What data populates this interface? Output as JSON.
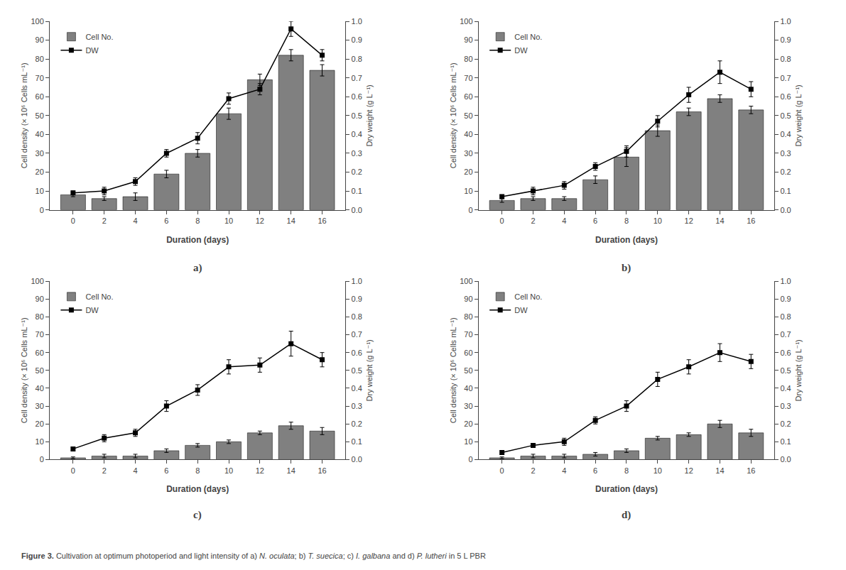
{
  "chart_data": [
    {
      "type": "bar",
      "annotation": "a)",
      "x": [
        0,
        2,
        4,
        6,
        8,
        10,
        12,
        14,
        16
      ],
      "xlabel": "Duration (days)",
      "ylabel": "Cell density (× 10⁶ Cells mL⁻¹)",
      "y2label": "Dry weight (g L⁻¹)",
      "xlim": [
        -1.5,
        17.5
      ],
      "xticks": [
        0,
        2,
        4,
        6,
        8,
        10,
        12,
        14,
        16
      ],
      "ylim": [
        0,
        100
      ],
      "yticks": [
        0,
        10,
        20,
        30,
        40,
        50,
        60,
        70,
        80,
        90,
        100
      ],
      "y2lim": [
        0,
        1
      ],
      "y2ticks": [
        {
          "value": 0,
          "label": "0.0"
        },
        0.1,
        0.2,
        0.3,
        0.4,
        0.5,
        0.6,
        0.7,
        0.8,
        0.9,
        {
          "value": 1.0,
          "label": "1.0"
        }
      ],
      "grid": false,
      "legend": "upper left",
      "series": [
        {
          "name": "Cell No.",
          "type": "bar",
          "color": "#808080",
          "values": [
            8,
            6,
            7,
            19,
            30,
            51,
            69,
            82,
            74
          ],
          "errors": [
            1,
            1,
            2,
            2,
            2,
            3,
            3,
            3,
            3
          ]
        },
        {
          "name": "DW",
          "type": "line",
          "axis": "y2",
          "color": "#000000",
          "marker": "square",
          "line_style": "solid",
          "values": [
            0.09,
            0.1,
            0.15,
            0.3,
            0.38,
            0.59,
            0.64,
            0.96,
            0.82
          ],
          "errors": [
            0.01,
            0.02,
            0.02,
            0.02,
            0.03,
            0.03,
            0.03,
            0.04,
            0.03
          ]
        }
      ]
    },
    {
      "type": "bar",
      "annotation": "b)",
      "x": [
        0,
        2,
        4,
        6,
        8,
        10,
        12,
        14,
        16
      ],
      "xlabel": "Duration (days)",
      "ylabel": "Cell density (× 10⁶ Cells mL⁻¹)",
      "y2label": "Dry weight (g L⁻¹)",
      "xlim": [
        -1.5,
        17.5
      ],
      "xticks": [
        0,
        2,
        4,
        6,
        8,
        10,
        12,
        14,
        16
      ],
      "ylim": [
        0,
        100
      ],
      "yticks": [
        0,
        10,
        20,
        30,
        40,
        50,
        60,
        70,
        80,
        90,
        100
      ],
      "y2lim": [
        0,
        1
      ],
      "y2ticks": [
        {
          "value": 0,
          "label": "0.0"
        },
        0.1,
        0.2,
        0.3,
        0.4,
        0.5,
        0.6,
        0.7,
        0.8,
        0.9,
        {
          "value": 1.0,
          "label": "1.0"
        }
      ],
      "grid": false,
      "legend": "upper left",
      "series": [
        {
          "name": "Cell No.",
          "type": "bar",
          "color": "#808080",
          "values": [
            5,
            6,
            6,
            16,
            28,
            42,
            52,
            59,
            53
          ],
          "errors": [
            1,
            1,
            1,
            2,
            5,
            3,
            2,
            2,
            2
          ]
        },
        {
          "name": "DW",
          "type": "line",
          "axis": "y2",
          "color": "#000000",
          "marker": "square",
          "line_style": "solid",
          "values": [
            0.07,
            0.1,
            0.13,
            0.23,
            0.31,
            0.47,
            0.61,
            0.73,
            0.64
          ],
          "errors": [
            0.01,
            0.02,
            0.02,
            0.02,
            0.03,
            0.03,
            0.04,
            0.06,
            0.04
          ]
        }
      ]
    },
    {
      "type": "bar",
      "annotation": "c)",
      "x": [
        0,
        2,
        4,
        6,
        8,
        10,
        12,
        14,
        16
      ],
      "xlabel": "Duration (days)",
      "ylabel": "Cell density (× 10⁶ Cells mL⁻¹)",
      "y2label": "Dry weight (g L⁻¹)",
      "xlim": [
        -1.5,
        17.5
      ],
      "xticks": [
        0,
        2,
        4,
        6,
        8,
        10,
        12,
        14,
        16
      ],
      "ylim": [
        0,
        100
      ],
      "yticks": [
        0,
        10,
        20,
        30,
        40,
        50,
        60,
        70,
        80,
        90,
        100
      ],
      "y2lim": [
        0,
        1
      ],
      "y2ticks": [
        {
          "value": 0,
          "label": "0.0"
        },
        0.1,
        0.2,
        0.3,
        0.4,
        0.5,
        0.6,
        0.7,
        0.8,
        0.9,
        {
          "value": 1.0,
          "label": "1.0"
        }
      ],
      "grid": false,
      "legend": "upper left",
      "series": [
        {
          "name": "Cell No.",
          "type": "bar",
          "color": "#808080",
          "values": [
            1,
            2,
            2,
            5,
            8,
            10,
            15,
            19,
            16
          ],
          "errors": [
            0.5,
            1,
            1,
            1,
            1,
            1,
            1,
            2,
            2
          ]
        },
        {
          "name": "DW",
          "type": "line",
          "axis": "y2",
          "color": "#000000",
          "marker": "square",
          "line_style": "solid",
          "values": [
            0.06,
            0.12,
            0.15,
            0.3,
            0.39,
            0.52,
            0.53,
            0.65,
            0.56
          ],
          "errors": [
            0.01,
            0.02,
            0.02,
            0.03,
            0.03,
            0.04,
            0.04,
            0.07,
            0.04
          ]
        }
      ]
    },
    {
      "type": "bar",
      "annotation": "d)",
      "x": [
        0,
        2,
        4,
        6,
        8,
        10,
        12,
        14,
        16
      ],
      "xlabel": "Duration (days)",
      "ylabel": "Cell density (× 10⁶ Cells mL⁻¹)",
      "y2label": "Dry weight (g L⁻¹)",
      "xlim": [
        -1.5,
        17.5
      ],
      "xticks": [
        0,
        2,
        4,
        6,
        8,
        10,
        12,
        14,
        16
      ],
      "ylim": [
        0,
        100
      ],
      "yticks": [
        0,
        10,
        20,
        30,
        40,
        50,
        60,
        70,
        80,
        90,
        100
      ],
      "y2lim": [
        0,
        1
      ],
      "y2ticks": [
        {
          "value": 0,
          "label": "0.0"
        },
        0.1,
        0.2,
        0.3,
        0.4,
        0.5,
        0.6,
        0.7,
        0.8,
        0.9,
        {
          "value": 1.0,
          "label": "1.0"
        }
      ],
      "grid": false,
      "legend": "upper left",
      "series": [
        {
          "name": "Cell No.",
          "type": "bar",
          "color": "#808080",
          "values": [
            1,
            2,
            2,
            3,
            5,
            12,
            14,
            20,
            15
          ],
          "errors": [
            0.5,
            1,
            1,
            1,
            1,
            1,
            1,
            2,
            2
          ]
        },
        {
          "name": "DW",
          "type": "line",
          "axis": "y2",
          "color": "#000000",
          "marker": "square",
          "line_style": "solid",
          "values": [
            0.04,
            0.08,
            0.1,
            0.22,
            0.3,
            0.45,
            0.52,
            0.6,
            0.55
          ],
          "errors": [
            0.01,
            0.01,
            0.02,
            0.02,
            0.03,
            0.04,
            0.04,
            0.05,
            0.04
          ]
        }
      ]
    }
  ],
  "caption": [
    {
      "text": "Figure 3.",
      "style": "bold"
    },
    {
      "text": " Cultivation at optimum photoperiod and light intensity of a) ",
      "style": "normal"
    },
    {
      "text": "N. oculata",
      "style": "italic"
    },
    {
      "text": "; b) ",
      "style": "normal"
    },
    {
      "text": "T. suecica",
      "style": "italic"
    },
    {
      "text": "; c) ",
      "style": "normal"
    },
    {
      "text": "I. galbana",
      "style": "italic"
    },
    {
      "text": " and d) ",
      "style": "normal"
    },
    {
      "text": "P. lutheri",
      "style": "italic"
    },
    {
      "text": " in 5 L PBR",
      "style": "normal"
    }
  ]
}
